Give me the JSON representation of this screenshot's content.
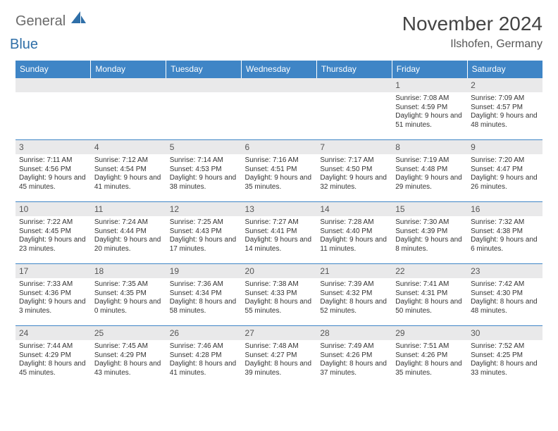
{
  "brand": {
    "word1": "General",
    "word2": "Blue",
    "logo_color": "#2f6fa8",
    "text_color": "#6b6b6b"
  },
  "title": "November 2024",
  "location": "Ilshofen, Germany",
  "header_bg": "#3f85c6",
  "daynum_bg": "#e9e9ea",
  "border_color": "#3f85c6",
  "weekdays": [
    "Sunday",
    "Monday",
    "Tuesday",
    "Wednesday",
    "Thursday",
    "Friday",
    "Saturday"
  ],
  "weeks": [
    [
      null,
      null,
      null,
      null,
      null,
      {
        "n": "1",
        "sr": "7:08 AM",
        "ss": "4:59 PM",
        "dl": "9 hours and 51 minutes."
      },
      {
        "n": "2",
        "sr": "7:09 AM",
        "ss": "4:57 PM",
        "dl": "9 hours and 48 minutes."
      }
    ],
    [
      {
        "n": "3",
        "sr": "7:11 AM",
        "ss": "4:56 PM",
        "dl": "9 hours and 45 minutes."
      },
      {
        "n": "4",
        "sr": "7:12 AM",
        "ss": "4:54 PM",
        "dl": "9 hours and 41 minutes."
      },
      {
        "n": "5",
        "sr": "7:14 AM",
        "ss": "4:53 PM",
        "dl": "9 hours and 38 minutes."
      },
      {
        "n": "6",
        "sr": "7:16 AM",
        "ss": "4:51 PM",
        "dl": "9 hours and 35 minutes."
      },
      {
        "n": "7",
        "sr": "7:17 AM",
        "ss": "4:50 PM",
        "dl": "9 hours and 32 minutes."
      },
      {
        "n": "8",
        "sr": "7:19 AM",
        "ss": "4:48 PM",
        "dl": "9 hours and 29 minutes."
      },
      {
        "n": "9",
        "sr": "7:20 AM",
        "ss": "4:47 PM",
        "dl": "9 hours and 26 minutes."
      }
    ],
    [
      {
        "n": "10",
        "sr": "7:22 AM",
        "ss": "4:45 PM",
        "dl": "9 hours and 23 minutes."
      },
      {
        "n": "11",
        "sr": "7:24 AM",
        "ss": "4:44 PM",
        "dl": "9 hours and 20 minutes."
      },
      {
        "n": "12",
        "sr": "7:25 AM",
        "ss": "4:43 PM",
        "dl": "9 hours and 17 minutes."
      },
      {
        "n": "13",
        "sr": "7:27 AM",
        "ss": "4:41 PM",
        "dl": "9 hours and 14 minutes."
      },
      {
        "n": "14",
        "sr": "7:28 AM",
        "ss": "4:40 PM",
        "dl": "9 hours and 11 minutes."
      },
      {
        "n": "15",
        "sr": "7:30 AM",
        "ss": "4:39 PM",
        "dl": "9 hours and 8 minutes."
      },
      {
        "n": "16",
        "sr": "7:32 AM",
        "ss": "4:38 PM",
        "dl": "9 hours and 6 minutes."
      }
    ],
    [
      {
        "n": "17",
        "sr": "7:33 AM",
        "ss": "4:36 PM",
        "dl": "9 hours and 3 minutes."
      },
      {
        "n": "18",
        "sr": "7:35 AM",
        "ss": "4:35 PM",
        "dl": "9 hours and 0 minutes."
      },
      {
        "n": "19",
        "sr": "7:36 AM",
        "ss": "4:34 PM",
        "dl": "8 hours and 58 minutes."
      },
      {
        "n": "20",
        "sr": "7:38 AM",
        "ss": "4:33 PM",
        "dl": "8 hours and 55 minutes."
      },
      {
        "n": "21",
        "sr": "7:39 AM",
        "ss": "4:32 PM",
        "dl": "8 hours and 52 minutes."
      },
      {
        "n": "22",
        "sr": "7:41 AM",
        "ss": "4:31 PM",
        "dl": "8 hours and 50 minutes."
      },
      {
        "n": "23",
        "sr": "7:42 AM",
        "ss": "4:30 PM",
        "dl": "8 hours and 48 minutes."
      }
    ],
    [
      {
        "n": "24",
        "sr": "7:44 AM",
        "ss": "4:29 PM",
        "dl": "8 hours and 45 minutes."
      },
      {
        "n": "25",
        "sr": "7:45 AM",
        "ss": "4:29 PM",
        "dl": "8 hours and 43 minutes."
      },
      {
        "n": "26",
        "sr": "7:46 AM",
        "ss": "4:28 PM",
        "dl": "8 hours and 41 minutes."
      },
      {
        "n": "27",
        "sr": "7:48 AM",
        "ss": "4:27 PM",
        "dl": "8 hours and 39 minutes."
      },
      {
        "n": "28",
        "sr": "7:49 AM",
        "ss": "4:26 PM",
        "dl": "8 hours and 37 minutes."
      },
      {
        "n": "29",
        "sr": "7:51 AM",
        "ss": "4:26 PM",
        "dl": "8 hours and 35 minutes."
      },
      {
        "n": "30",
        "sr": "7:52 AM",
        "ss": "4:25 PM",
        "dl": "8 hours and 33 minutes."
      }
    ]
  ],
  "labels": {
    "sunrise": "Sunrise:",
    "sunset": "Sunset:",
    "daylight": "Daylight:"
  }
}
